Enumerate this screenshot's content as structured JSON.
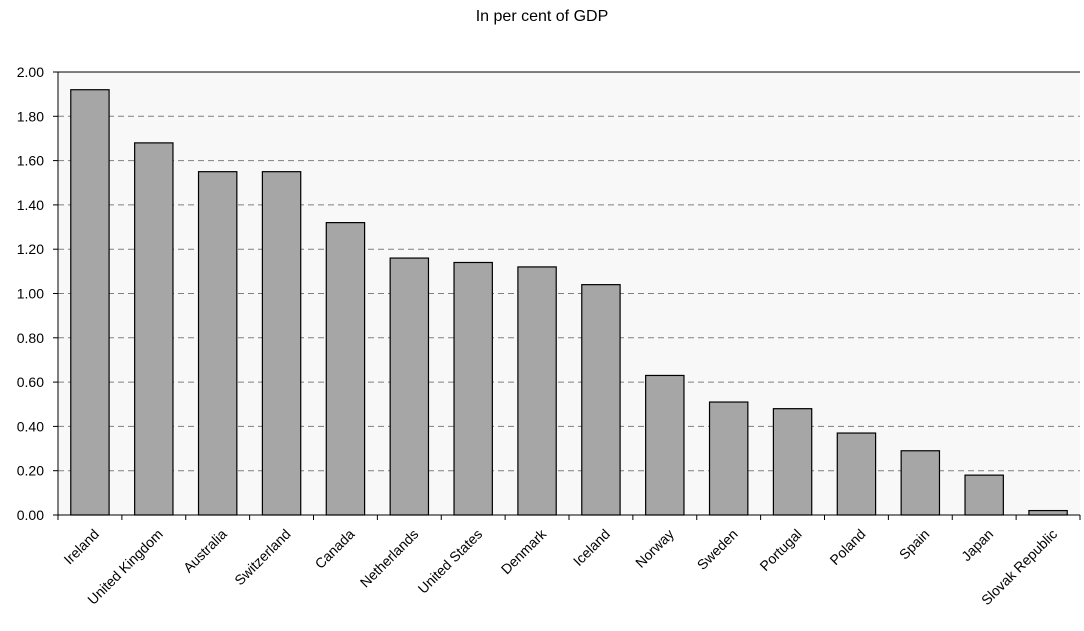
{
  "chart_data": {
    "type": "bar",
    "title": "In per cent of GDP",
    "xlabel": "",
    "ylabel": "",
    "categories": [
      "Ireland",
      "United Kingdom",
      "Australia",
      "Switzerland",
      "Canada",
      "Netherlands",
      "United States",
      "Denmark",
      "Iceland",
      "Norway",
      "Sweden",
      "Portugal",
      "Poland",
      "Spain",
      "Japan",
      "Slovak Republic"
    ],
    "values": [
      1.92,
      1.68,
      1.55,
      1.55,
      1.32,
      1.16,
      1.14,
      1.12,
      1.04,
      0.63,
      0.51,
      0.48,
      0.37,
      0.29,
      0.18,
      0.02
    ],
    "ylim": [
      0,
      2.0
    ],
    "yticks": [
      "0.00",
      "0.20",
      "0.40",
      "0.60",
      "0.80",
      "1.00",
      "1.20",
      "1.40",
      "1.60",
      "1.80",
      "2.00"
    ],
    "grid": true,
    "bar_color": "#a6a6a6",
    "plot_background": "#f8f8f8"
  }
}
